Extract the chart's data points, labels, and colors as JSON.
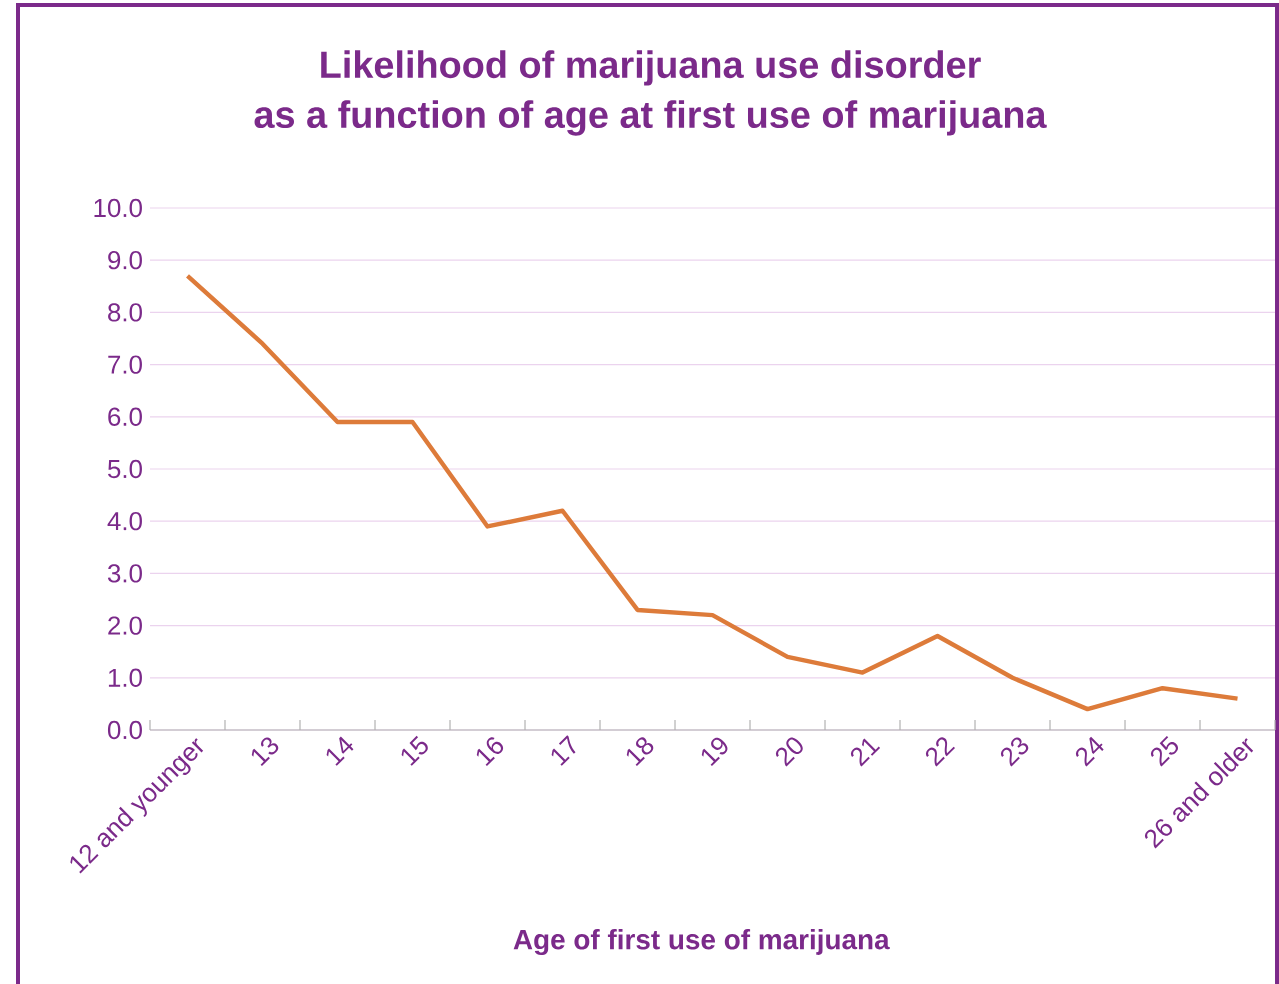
{
  "chart_data": {
    "type": "line",
    "title": "Likelihood of marijuana use disorder",
    "subtitle": "as a function of age at first use of marijuana",
    "xlabel": "Age of first use of marijuana",
    "categories": [
      "12 and younger",
      "13",
      "14",
      "15",
      "16",
      "17",
      "18",
      "19",
      "20",
      "21",
      "22",
      "23",
      "24",
      "25",
      "26 and older"
    ],
    "values": [
      8.7,
      7.4,
      5.9,
      5.9,
      3.9,
      4.2,
      2.3,
      2.2,
      1.4,
      1.1,
      1.8,
      1.0,
      0.4,
      0.8,
      0.6
    ],
    "color": "#dd7b3a",
    "ylim": [
      0,
      10
    ],
    "yticks": [
      {
        "value": 0,
        "label": "0.0"
      },
      {
        "value": 1,
        "label": "1.0"
      },
      {
        "value": 2,
        "label": "2.0"
      },
      {
        "value": 3,
        "label": "3.0"
      },
      {
        "value": 4,
        "label": "4.0"
      },
      {
        "value": 5,
        "label": "5.0"
      },
      {
        "value": 6,
        "label": "6.0"
      },
      {
        "value": 7,
        "label": "7.0"
      },
      {
        "value": 8,
        "label": "8.0"
      },
      {
        "value": 9,
        "label": "9.0"
      },
      {
        "value": 10,
        "label": "10.0"
      }
    ],
    "grid": "y",
    "marker": "none",
    "line_style": "solid"
  }
}
